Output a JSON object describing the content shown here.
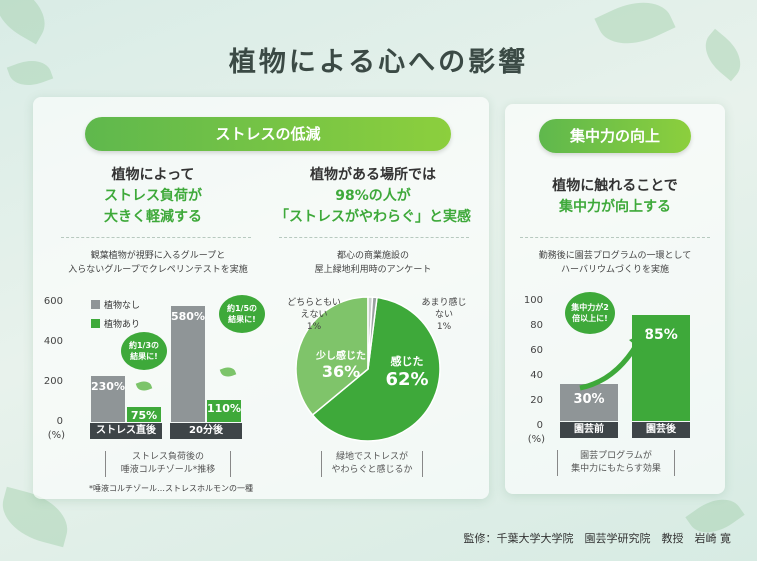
{
  "title": "植物による心への影響",
  "colors": {
    "accent": "#3ea93a",
    "bar_gray": "#8f9597",
    "pill_start": "#5fb84d",
    "pill_end": "#8ccf3d"
  },
  "stress_section": {
    "pill": "ストレスの低減",
    "left": {
      "headline_1": "植物によって",
      "headline_2": "ストレス負荷が",
      "headline_3": "大きく軽減する",
      "desc_1": "観葉植物が視野に入るグループと",
      "desc_2": "入らないグループでクレペリンテストを実施",
      "legend_none": "植物なし",
      "legend_with": "植物あり",
      "bubble_1": "約1/3の結果に!",
      "bubble_2": "約1/5の結果に!",
      "unit": "(%)",
      "bracket_1": "ストレス負荷後の",
      "bracket_2": "唾液コルチゾール*推移",
      "footnote": "*唾液コルチゾール…ストレスホルモンの一種"
    },
    "mid": {
      "headline_1": "植物がある場所では",
      "headline_2": "98%の人が",
      "headline_3": "「ストレスがやわらぐ」と実感",
      "desc_1": "都心の商業施設の",
      "desc_2": "屋上緑地利用時のアンケート",
      "bracket_1": "緑地でストレスが",
      "bracket_2": "やわらぐと感じるか"
    }
  },
  "focus_section": {
    "pill": "集中力の向上",
    "headline_1": "植物に触れることで",
    "headline_2": "集中力が向上する",
    "desc_1": "勤務後に園芸プログラムの一環として",
    "desc_2": "ハーバリウムづくりを実施",
    "bubble": "集中力が2倍以上に!",
    "unit": "(%)",
    "bracket_1": "園芸プログラムが",
    "bracket_2": "集中力にもたらす効果"
  },
  "chart_data": [
    {
      "type": "bar",
      "categories": [
        "ストレス直後",
        "20分後"
      ],
      "series": [
        {
          "name": "植物なし",
          "values": [
            230,
            580
          ]
        },
        {
          "name": "植物あり",
          "values": [
            75,
            110
          ]
        }
      ],
      "value_labels": [
        [
          "230%",
          "75%"
        ],
        [
          "580%",
          "110%"
        ]
      ],
      "yticks": [
        "600",
        "400",
        "200",
        "0"
      ],
      "ylim": [
        0,
        600
      ]
    },
    {
      "type": "pie",
      "slices": [
        {
          "label": "感じた",
          "value": 62,
          "display": "62%",
          "color": "#3ea93a"
        },
        {
          "label": "少し感じた",
          "value": 36,
          "display": "36%",
          "color": "#7fc46a"
        },
        {
          "label": "どちらともいえない",
          "value": 1,
          "display": "1%",
          "color": "#c9cfcc"
        },
        {
          "label": "あまり感じない",
          "value": 1,
          "display": "1%",
          "color": "#9aa2a0"
        }
      ]
    },
    {
      "type": "bar",
      "categories": [
        "園芸前",
        "園芸後"
      ],
      "values": [
        30,
        85
      ],
      "value_labels": [
        "30%",
        "85%"
      ],
      "yticks": [
        "100",
        "80",
        "60",
        "40",
        "20",
        "0"
      ],
      "ylim": [
        0,
        100
      ]
    }
  ],
  "credit": "監修：千葉大学大学院　園芸学研究院　教授　岩崎 寛"
}
